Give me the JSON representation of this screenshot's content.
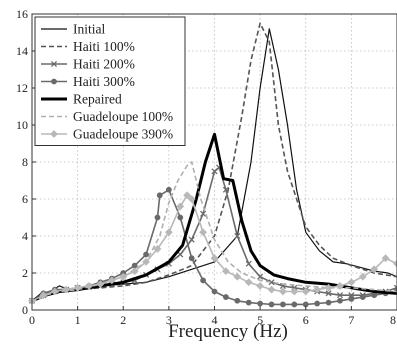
{
  "chart_data": {
    "type": "line",
    "title": "",
    "xlabel": "Frequency (Hz)",
    "ylabel": "",
    "xlim": [
      0,
      8
    ],
    "ylim": [
      0,
      16
    ],
    "x_ticks": [
      0,
      1,
      2,
      3,
      4,
      5,
      6,
      7,
      8
    ],
    "y_ticks": [
      0,
      2,
      4,
      6,
      8,
      10,
      12,
      14,
      16
    ],
    "grid": true,
    "legend_position": "top-left",
    "series": [
      {
        "name": "Initial",
        "style": "solid-thin",
        "color": "#111111",
        "marker": "none",
        "x": [
          0,
          0.2,
          0.4,
          0.6,
          0.8,
          1.0,
          1.5,
          2.0,
          2.5,
          3.0,
          3.5,
          4.0,
          4.5,
          4.8,
          5.0,
          5.2,
          5.4,
          5.6,
          5.8,
          6.0,
          6.3,
          6.6,
          6.9,
          7.2,
          7.5,
          7.8,
          8.0
        ],
        "y": [
          0.5,
          0.9,
          1.0,
          1.3,
          1.1,
          1.2,
          1.3,
          1.4,
          1.5,
          1.8,
          2.2,
          2.6,
          4.0,
          8.0,
          12.0,
          15.2,
          13.0,
          10.0,
          6.5,
          4.2,
          3.2,
          2.6,
          2.5,
          2.3,
          2.1,
          2.0,
          1.8
        ]
      },
      {
        "name": "Haiti 100%",
        "style": "dashed",
        "color": "#555555",
        "marker": "none",
        "x": [
          0,
          0.3,
          0.6,
          1.0,
          1.5,
          2.0,
          2.5,
          3.0,
          3.5,
          4.0,
          4.3,
          4.6,
          4.8,
          5.0,
          5.2,
          5.4,
          5.6,
          5.8,
          6.0,
          6.3,
          6.6,
          7.0,
          7.5,
          8.0
        ],
        "y": [
          0.5,
          0.9,
          1.1,
          1.1,
          1.2,
          1.3,
          1.5,
          1.9,
          2.4,
          4.0,
          6.5,
          10.5,
          13.5,
          15.5,
          14.5,
          10.0,
          7.5,
          6.0,
          4.5,
          3.5,
          2.8,
          2.4,
          2.0,
          1.8
        ]
      },
      {
        "name": "Haiti 200%",
        "style": "solid",
        "color": "#6a6a6a",
        "marker": "x",
        "x": [
          0,
          0.25,
          0.5,
          0.75,
          1.0,
          1.25,
          1.5,
          1.75,
          2.0,
          2.25,
          2.5,
          2.75,
          3.0,
          3.25,
          3.5,
          3.75,
          4.0,
          4.1,
          4.25,
          4.5,
          4.75,
          5.0,
          5.25,
          5.5,
          5.75,
          6.0,
          6.25,
          6.5,
          6.75,
          7.0,
          7.25,
          7.5,
          7.75,
          8.0
        ],
        "y": [
          0.5,
          0.8,
          1.0,
          1.1,
          1.2,
          1.25,
          1.3,
          1.4,
          1.5,
          1.6,
          1.9,
          2.2,
          2.5,
          3.0,
          3.8,
          5.2,
          7.5,
          7.7,
          6.5,
          4.0,
          2.5,
          1.8,
          1.5,
          1.3,
          1.2,
          1.1,
          1.0,
          0.9,
          0.8,
          0.8,
          0.8,
          0.9,
          1.0,
          1.2
        ]
      },
      {
        "name": "Haiti 300%",
        "style": "solid",
        "color": "#6a6a6a",
        "marker": "circle",
        "x": [
          0,
          0.25,
          0.5,
          0.75,
          1.0,
          1.25,
          1.5,
          1.75,
          2.0,
          2.25,
          2.5,
          2.75,
          2.8,
          3.0,
          3.25,
          3.5,
          3.75,
          4.0,
          4.25,
          4.5,
          4.75,
          5.0,
          5.25,
          5.5,
          5.75,
          6.0,
          6.25,
          6.5,
          6.75,
          7.0,
          7.25,
          7.5,
          7.75,
          8.0
        ],
        "y": [
          0.5,
          0.9,
          1.1,
          1.1,
          1.2,
          1.3,
          1.5,
          1.7,
          2.0,
          2.4,
          3.0,
          5.0,
          6.2,
          6.5,
          5.0,
          2.8,
          1.6,
          1.0,
          0.7,
          0.5,
          0.4,
          0.35,
          0.3,
          0.3,
          0.3,
          0.3,
          0.35,
          0.4,
          0.5,
          0.6,
          0.7,
          0.8,
          0.9,
          1.0
        ]
      },
      {
        "name": "Repaired",
        "style": "solid-thick",
        "color": "#000000",
        "marker": "none",
        "x": [
          0,
          0.3,
          0.6,
          1.0,
          1.5,
          2.0,
          2.5,
          3.0,
          3.3,
          3.6,
          3.8,
          4.0,
          4.2,
          4.4,
          4.6,
          4.8,
          5.0,
          5.3,
          5.6,
          6.0,
          6.5,
          7.0,
          7.5,
          8.0
        ],
        "y": [
          0.5,
          0.8,
          1.0,
          1.1,
          1.3,
          1.5,
          1.9,
          2.6,
          3.5,
          6.0,
          8.0,
          9.5,
          7.1,
          7.0,
          4.8,
          3.2,
          2.4,
          1.9,
          1.7,
          1.5,
          1.4,
          1.2,
          1.0,
          0.9
        ]
      },
      {
        "name": "Guadeloupe 100%",
        "style": "dashed",
        "color": "#b0b0b0",
        "marker": "none",
        "x": [
          0,
          0.3,
          0.6,
          1.0,
          1.5,
          2.0,
          2.5,
          2.8,
          3.0,
          3.2,
          3.4,
          3.5,
          3.7,
          4.0,
          4.3,
          4.6,
          5.0,
          5.5,
          6.0,
          6.5,
          7.0,
          7.5,
          8.0
        ],
        "y": [
          0.4,
          0.8,
          1.0,
          1.1,
          1.4,
          1.8,
          2.6,
          4.0,
          5.8,
          7.0,
          7.8,
          8.0,
          6.0,
          3.8,
          2.6,
          2.0,
          1.6,
          1.4,
          1.3,
          1.2,
          1.2,
          1.1,
          1.0
        ]
      },
      {
        "name": "Guadeloupe 390%",
        "style": "solid",
        "color": "#b8b8b8",
        "marker": "diamond",
        "x": [
          0,
          0.25,
          0.5,
          0.75,
          1.0,
          1.25,
          1.5,
          1.75,
          2.0,
          2.25,
          2.5,
          2.75,
          3.0,
          3.25,
          3.4,
          3.5,
          3.75,
          4.0,
          4.25,
          4.5,
          4.75,
          5.0,
          5.25,
          5.5,
          5.75,
          6.0,
          6.25,
          6.5,
          6.75,
          7.0,
          7.25,
          7.5,
          7.75,
          8.0
        ],
        "y": [
          0.5,
          0.8,
          1.0,
          1.1,
          1.2,
          1.3,
          1.4,
          1.6,
          1.8,
          2.1,
          2.6,
          3.3,
          4.2,
          5.6,
          6.2,
          6.0,
          4.2,
          2.8,
          2.1,
          1.8,
          1.5,
          1.3,
          1.1,
          1.0,
          1.0,
          1.0,
          1.1,
          1.2,
          1.3,
          1.5,
          1.8,
          2.2,
          2.8,
          2.5
        ]
      }
    ]
  }
}
